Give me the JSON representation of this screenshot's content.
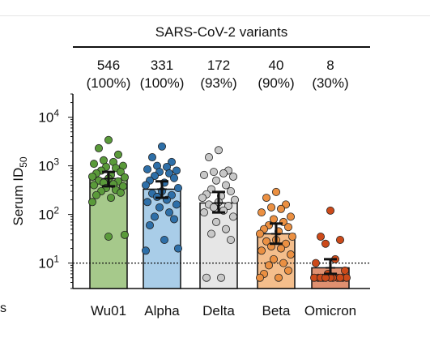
{
  "chart_data": {
    "type": "bar",
    "header": "SARS-CoV-2 variants",
    "categories": [
      "Wu01",
      "Alpha",
      "Delta",
      "Beta",
      "Omicron"
    ],
    "counts": [
      "546",
      "331",
      "172",
      "40",
      "8"
    ],
    "percents": [
      "(100%)",
      "(100%)",
      "(93%)",
      "(90%)",
      "(30%)"
    ],
    "ylabel": "Serum ID",
    "ylabel_sub": "50",
    "yscale": "log",
    "ylim": [
      3,
      30000
    ],
    "yticks": [
      {
        "value": 10,
        "base": "10",
        "exp": "1"
      },
      {
        "value": 100,
        "base": "10",
        "exp": "2"
      },
      {
        "value": 1000,
        "base": "10",
        "exp": "3"
      },
      {
        "value": 10000,
        "base": "10",
        "exp": "4"
      }
    ],
    "threshold": 10,
    "values": [
      546,
      331,
      172,
      40,
      8
    ],
    "ci": [
      [
        380,
        750
      ],
      [
        220,
        480
      ],
      [
        110,
        290
      ],
      [
        25,
        65
      ],
      [
        6,
        12
      ]
    ],
    "points": [
      [
        3400,
        2300,
        1700,
        1300,
        1200,
        1100,
        1000,
        950,
        900,
        800,
        750,
        700,
        650,
        600,
        580,
        550,
        500,
        480,
        450,
        420,
        400,
        380,
        350,
        320,
        300,
        280,
        250,
        220,
        180,
        38,
        35
      ],
      [
        2500,
        1500,
        1200,
        1000,
        950,
        850,
        800,
        750,
        700,
        620,
        560,
        500,
        450,
        400,
        350,
        300,
        270,
        250,
        230,
        200,
        180,
        160,
        140,
        110,
        90,
        80,
        60,
        30,
        18,
        20
      ],
      [
        2100,
        1500,
        800,
        750,
        700,
        650,
        600,
        500,
        400,
        330,
        300,
        260,
        240,
        220,
        200,
        180,
        160,
        150,
        140,
        120,
        110,
        90,
        70,
        50,
        40,
        30,
        5,
        5
      ],
      [
        290,
        220,
        160,
        140,
        130,
        110,
        90,
        80,
        70,
        60,
        55,
        50,
        45,
        40,
        35,
        30,
        28,
        25,
        22,
        20,
        18,
        15,
        12,
        10,
        9,
        7,
        6,
        5,
        5
      ],
      [
        120,
        35,
        30,
        25,
        12,
        10,
        7,
        6,
        5,
        5,
        5,
        5,
        5,
        5,
        5,
        5,
        5,
        5,
        5
      ]
    ],
    "colors": {
      "fill": [
        "#a6c98b",
        "#a9cde8",
        "#e6e6e6",
        "#f4be8c",
        "#e09070"
      ],
      "dot": [
        "#5a9a3a",
        "#2e6fa8",
        "#c8c8c8",
        "#eb9042",
        "#cc4a1a"
      ]
    },
    "edge_mark": "s"
  }
}
